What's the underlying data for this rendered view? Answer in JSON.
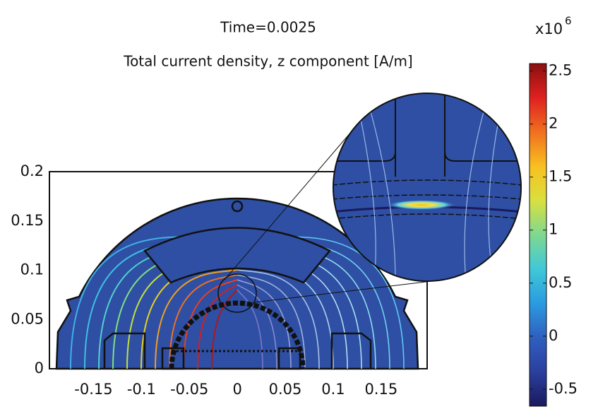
{
  "chart_data": {
    "type": "surface",
    "title": "Time=0.0025",
    "subtitle": "Total current density, z component [A/m]",
    "xlim": [
      -0.196,
      0.198
    ],
    "ylim": [
      0,
      0.2
    ],
    "xticks": [
      -0.15,
      -0.1,
      -0.05,
      0,
      0.05,
      0.1,
      0.15
    ],
    "yticks": [
      0,
      0.05,
      0.1,
      0.15,
      0.2
    ],
    "colorbar": {
      "multiplier": "x10",
      "exponent": "6",
      "clim": [
        -0.66,
        2.57
      ],
      "ticks": [
        -0.5,
        0,
        0.5,
        1,
        1.5,
        2,
        2.5
      ],
      "colormap": [
        "#1a1a5e",
        "#2b3f9e",
        "#2f5fc0",
        "#2a9be0",
        "#40c8d8",
        "#7fd890",
        "#d8e040",
        "#f8c020",
        "#f07020",
        "#e02020",
        "#8a1010"
      ]
    }
  }
}
